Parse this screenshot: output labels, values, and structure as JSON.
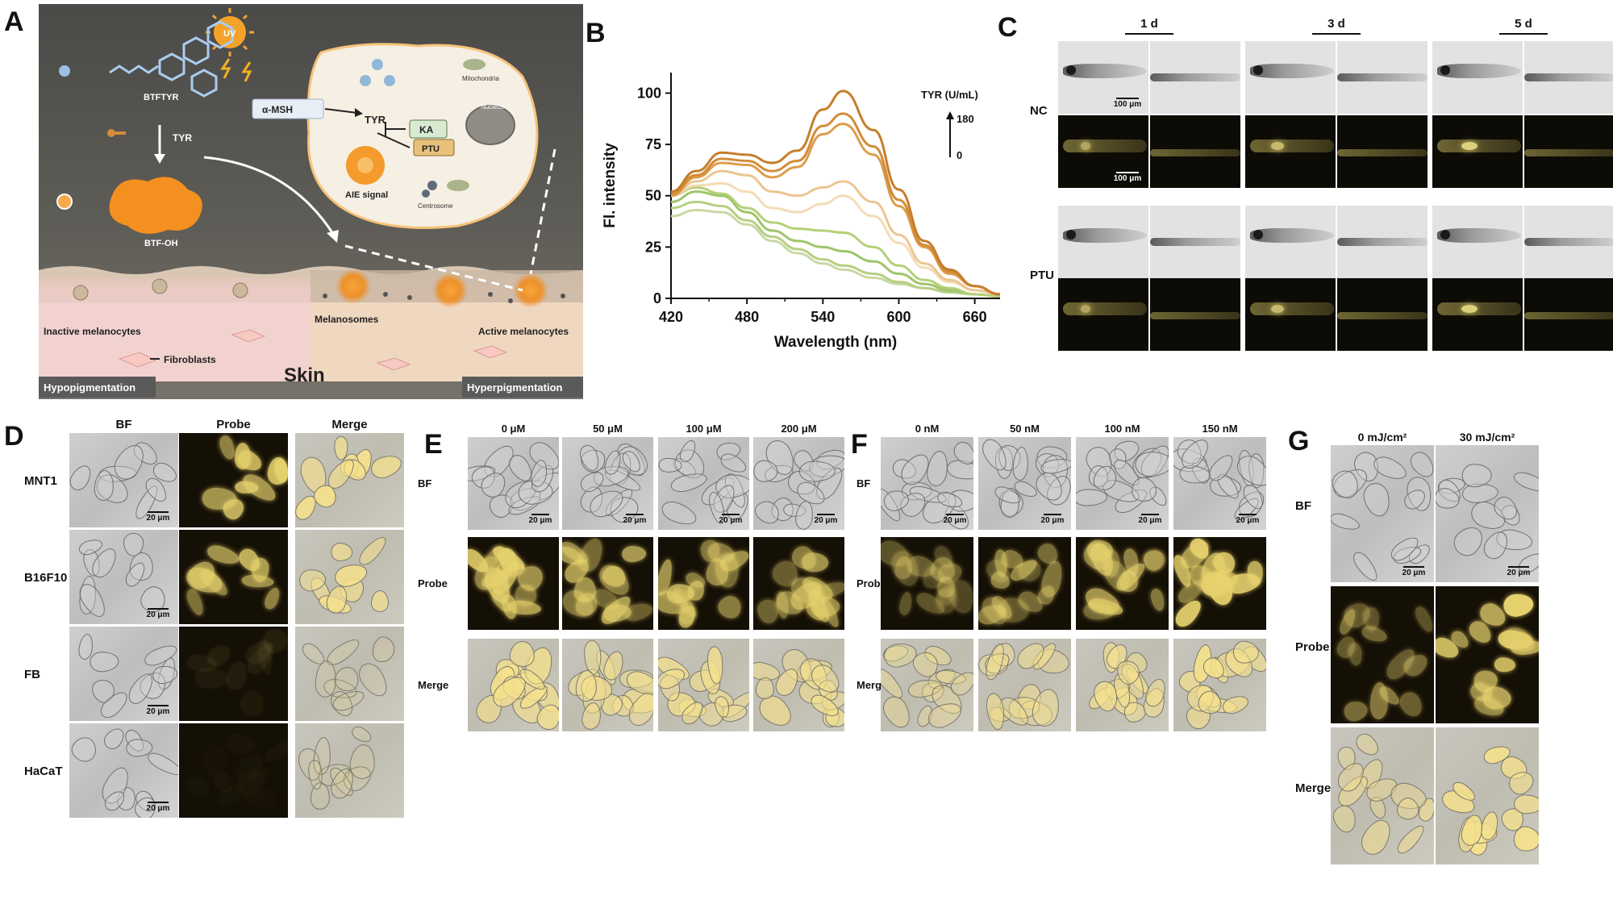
{
  "panels": {
    "A": {
      "letter": "A",
      "labels": {
        "btftyr": "BTFTYR",
        "tyr_arrow": "TYR",
        "btfoh": "BTF-OH",
        "uv": "UV",
        "amsh": "α-MSH",
        "tyr_cell": "TYR",
        "ka": "KA",
        "ptu": "PTU",
        "mitochondria": "Mitochondria",
        "nucleus": "Nucleus",
        "aie_signal": "AIE signal",
        "centrosome": "Centrosome",
        "inactive": "Inactive melanocytes",
        "melanosomes": "Melanosomes",
        "active": "Active melanocytes",
        "fibroblasts": "Fibroblasts",
        "skin": "Skin",
        "hypo": "Hypopigmentation",
        "hyper": "Hyperpigmentation"
      }
    },
    "B": {
      "letter": "B",
      "chart_data": {
        "type": "line",
        "xlabel": "Wavelength (nm)",
        "ylabel": "Fl. intensity",
        "xlim": [
          420,
          680
        ],
        "ylim": [
          0,
          110
        ],
        "xticks": [
          420,
          480,
          540,
          600,
          660
        ],
        "yticks": [
          0,
          25,
          50,
          75,
          100
        ],
        "legend_title": "TYR (U/mL)",
        "legend_max": "180",
        "legend_min": "0",
        "x": [
          420,
          440,
          460,
          480,
          500,
          520,
          540,
          556,
          580,
          600,
          620,
          640,
          660,
          680
        ],
        "series": [
          {
            "color": "#c9d8a2",
            "values": [
              40,
              43,
              42,
              36,
              28,
              22,
              17,
              14,
              10,
              7,
              5,
              3,
              2,
              1
            ]
          },
          {
            "color": "#b6cf82",
            "values": [
              44,
              47,
              45,
              38,
              30,
              24,
              19,
              16,
              12,
              8,
              5,
              3,
              2,
              1
            ]
          },
          {
            "color": "#9fc46a",
            "values": [
              47,
              52,
              50,
              42,
              33,
              28,
              25,
              23,
              18,
              12,
              7,
              4,
              2,
              1
            ]
          },
          {
            "color": "#b4d07a",
            "values": [
              50,
              54,
              51,
              44,
              37,
              34,
              33,
              32,
              25,
              16,
              9,
              5,
              2,
              1
            ]
          },
          {
            "color": "#f3dcb5",
            "values": [
              50,
              55,
              56,
              52,
              44,
              42,
              46,
              50,
              40,
              27,
              15,
              8,
              4,
              2
            ]
          },
          {
            "color": "#ecc591",
            "values": [
              50,
              57,
              62,
              60,
              52,
              50,
              54,
              57,
              47,
              31,
              17,
              9,
              4,
              2
            ]
          },
          {
            "color": "#dc9d4c",
            "values": [
              50,
              59,
              66,
              65,
              59,
              64,
              80,
              85,
              70,
              45,
              25,
              12,
              6,
              2
            ]
          },
          {
            "color": "#d28c38",
            "values": [
              51,
              60,
              68,
              67,
              62,
              67,
              84,
              90,
              74,
              48,
              26,
              13,
              6,
              2
            ]
          },
          {
            "color": "#c67e2c",
            "values": [
              52,
              62,
              71,
              70,
              66,
              72,
              92,
              101,
              82,
              53,
              28,
              14,
              6,
              2
            ]
          }
        ]
      }
    },
    "C": {
      "letter": "C",
      "days": [
        "1 d",
        "3 d",
        "5 d"
      ],
      "rows": [
        "NC",
        "PTU"
      ],
      "scale": "100 μm"
    },
    "D": {
      "letter": "D",
      "columns": [
        "BF",
        "Probe",
        "Merge"
      ],
      "rows": [
        "MNT1",
        "B16F10",
        "FB",
        "HaCaT"
      ],
      "scale": "20 μm"
    },
    "E": {
      "letter": "E",
      "columns": [
        "0 μM",
        "50 μM",
        "100 μM",
        "200 μM"
      ],
      "rows": [
        "BF",
        "Probe",
        "Merge"
      ],
      "scale": "20 μm"
    },
    "F": {
      "letter": "F",
      "columns": [
        "0 nM",
        "50 nM",
        "100 nM",
        "150 nM"
      ],
      "rows": [
        "BF",
        "Probe",
        "Merge"
      ],
      "scale": "20 μm"
    },
    "G": {
      "letter": "G",
      "columns": [
        "0 mJ/cm²",
        "30 mJ/cm²"
      ],
      "rows": [
        "BF",
        "Probe",
        "Merge"
      ],
      "scale": "20 μm"
    }
  }
}
